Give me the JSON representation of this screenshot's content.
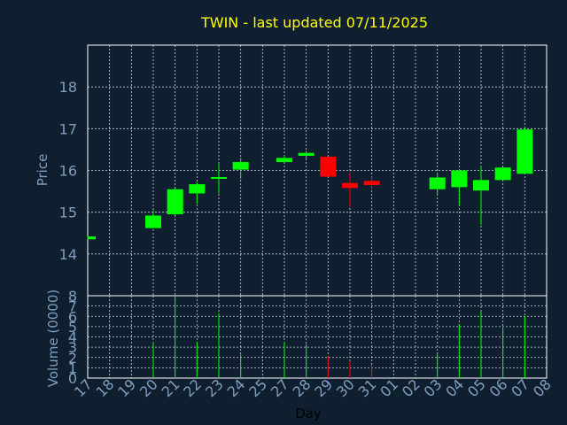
{
  "chart_data": {
    "type": "candlestick",
    "title": "TWIN - last updated 07/11/2025",
    "xlabel": "Day",
    "ylabel": "Price",
    "volume_label": "Volume (0000)",
    "x_ticks": [
      "17",
      "18",
      "19",
      "20",
      "21",
      "22",
      "23",
      "24",
      "25",
      "27",
      "28",
      "29",
      "30",
      "31",
      "01",
      "02",
      "03",
      "04",
      "05",
      "06",
      "07",
      "08"
    ],
    "price_ylim": [
      13.0,
      19.0
    ],
    "price_ticks": [
      14,
      15,
      16,
      17,
      18
    ],
    "volume_ylim": [
      0,
      8
    ],
    "volume_ticks": [
      0,
      1,
      2,
      3,
      4,
      5,
      6,
      7,
      8
    ],
    "grid": true,
    "candles": [
      {
        "day": "17",
        "open": 14.35,
        "high": 14.42,
        "low": 14.35,
        "close": 14.42,
        "volume": 0
      },
      {
        "day": "20",
        "open": 14.62,
        "high": 15.05,
        "low": 14.62,
        "close": 14.92,
        "volume": 3.5
      },
      {
        "day": "21",
        "open": 14.95,
        "high": 15.58,
        "low": 14.93,
        "close": 15.55,
        "volume": 8
      },
      {
        "day": "22",
        "open": 15.45,
        "high": 15.72,
        "low": 15.2,
        "close": 15.67,
        "volume": 3.5
      },
      {
        "day": "23",
        "open": 15.8,
        "high": 16.15,
        "low": 15.45,
        "close": 15.82,
        "volume": 6.3
      },
      {
        "day": "24",
        "open": 16.02,
        "high": 16.3,
        "low": 15.8,
        "close": 16.2,
        "volume": 2.3
      },
      {
        "day": "27",
        "open": 16.2,
        "high": 16.35,
        "low": 16.2,
        "close": 16.3,
        "volume": 3.5
      },
      {
        "day": "28",
        "open": 16.35,
        "high": 16.47,
        "low": 16.28,
        "close": 16.42,
        "volume": 3.3
      },
      {
        "day": "29",
        "open": 16.33,
        "high": 16.33,
        "low": 15.85,
        "close": 15.85,
        "volume": 2.1
      },
      {
        "day": "30",
        "open": 15.7,
        "high": 15.95,
        "low": 15.12,
        "close": 15.58,
        "volume": 1.7
      },
      {
        "day": "31",
        "open": 15.75,
        "high": 15.85,
        "low": 15.55,
        "close": 15.65,
        "volume": 1.3
      },
      {
        "day": "03",
        "open": 15.55,
        "high": 15.95,
        "low": 15.42,
        "close": 15.83,
        "volume": 2.5
      },
      {
        "day": "04",
        "open": 15.6,
        "high": 16.0,
        "low": 15.15,
        "close": 16.0,
        "volume": 5.2
      },
      {
        "day": "05",
        "open": 15.52,
        "high": 16.1,
        "low": 14.7,
        "close": 15.77,
        "volume": 6.5
      },
      {
        "day": "06",
        "open": 15.77,
        "high": 16.07,
        "low": 15.75,
        "close": 16.07,
        "volume": 4.8
      },
      {
        "day": "07",
        "open": 15.92,
        "high": 17.03,
        "low": 15.92,
        "close": 16.98,
        "volume": 6.0
      }
    ],
    "colors": {
      "background": "#0f1f30",
      "up": "#00ff00",
      "down": "#ff0000",
      "title": "#ffff00",
      "axis_text": "#7f9fbf",
      "grid": "#c8d4e0"
    }
  }
}
